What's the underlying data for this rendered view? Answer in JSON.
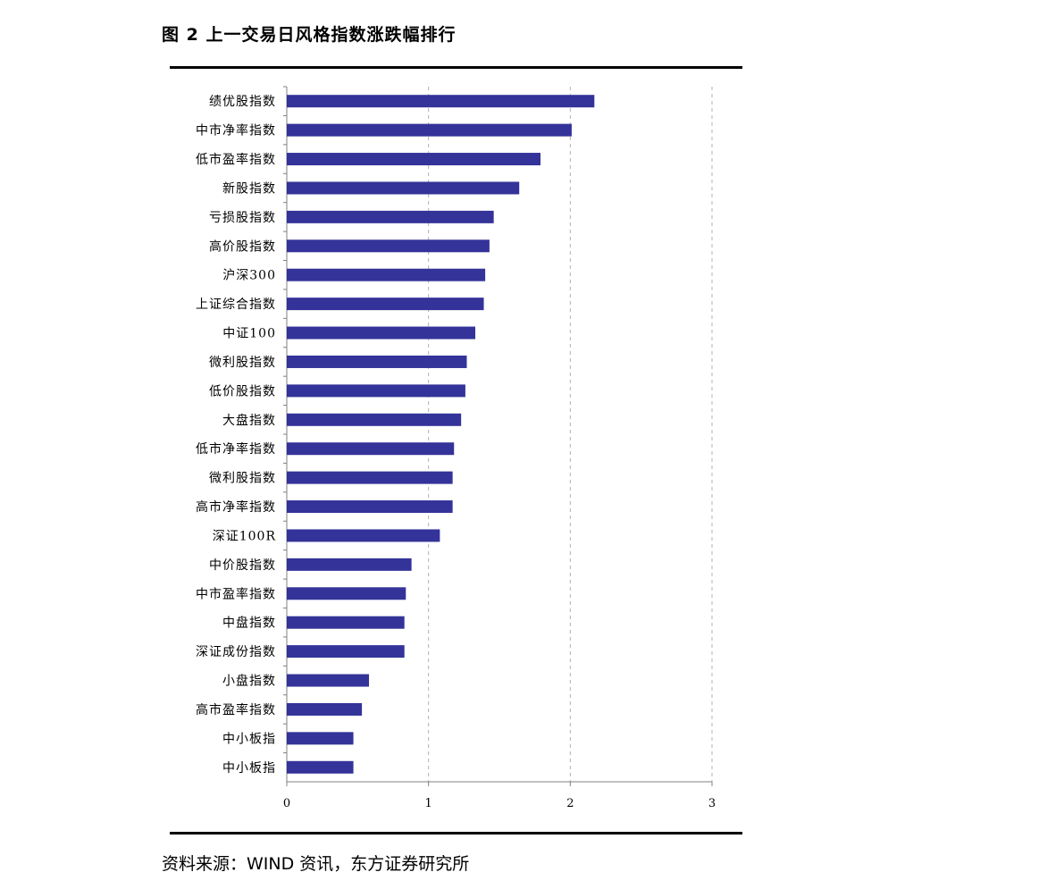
{
  "figure": {
    "title": "图 2  上一交易日风格指数涨跌幅排行",
    "source": "资料来源：WIND 资讯，东方证券研究所"
  },
  "colors": {
    "bar": "#333399",
    "axis": "#808080",
    "grid": "#b0b0b0"
  },
  "chart_data": {
    "type": "bar",
    "orientation": "horizontal",
    "categories": [
      "绩优股指数",
      "中市净率指数",
      "低市盈率指数",
      "新股指数",
      "亏损股指数",
      "高价股指数",
      "沪深300",
      "上证综合指数",
      "中证100",
      "微利股指数",
      "低价股指数",
      "大盘指数",
      "低市净率指数",
      "微利股指数",
      "高市净率指数",
      "深证100R",
      "中价股指数",
      "中市盈率指数",
      "中盘指数",
      "深证成份指数",
      "小盘指数",
      "高市盈率指数",
      "中小板指",
      "中小板指"
    ],
    "values": [
      2.17,
      2.01,
      1.79,
      1.64,
      1.46,
      1.43,
      1.4,
      1.39,
      1.33,
      1.27,
      1.26,
      1.23,
      1.18,
      1.17,
      1.17,
      1.08,
      0.88,
      0.84,
      0.83,
      0.83,
      0.58,
      0.53,
      0.47,
      0.47
    ],
    "xlim": [
      0,
      3
    ],
    "xticks": [
      "0",
      "1",
      "2",
      "3"
    ],
    "grid": "vertical dashed"
  }
}
